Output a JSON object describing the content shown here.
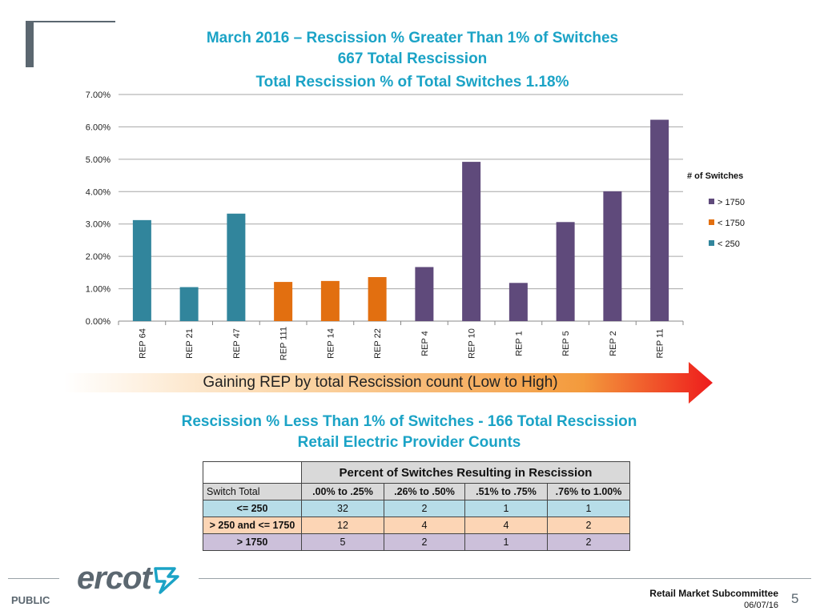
{
  "slide": {
    "title_lines": [
      "March 2016 – Rescission % Greater Than 1% of Switches",
      "667 Total Rescission",
      "Total Rescission % of Total Switches 1.18%"
    ],
    "arrow_text": "Gaining REP by total Rescission count (Low to High)",
    "subtitle_lines": [
      "Rescission % Less Than 1% of Switches - 166 Total Rescission",
      "Retail Electric Provider Counts"
    ],
    "footer": {
      "logo_text": "ercot",
      "public_label": "PUBLIC",
      "committee": "Retail Market Subcommittee",
      "date": "06/07/16",
      "page": "5"
    }
  },
  "chart_data": {
    "type": "bar",
    "categories": [
      "REP 64",
      "REP 21",
      "REP 47",
      "REP 111",
      "REP 14",
      "REP 22",
      "REP 4",
      "REP 10",
      "REP 1",
      "REP 5",
      "REP 2",
      "REP 11"
    ],
    "values": [
      3.12,
      1.05,
      3.32,
      1.21,
      1.24,
      1.36,
      1.67,
      4.92,
      1.18,
      3.06,
      4.01,
      6.22
    ],
    "groups": [
      "< 250",
      "< 250",
      "< 250",
      "< 1750",
      "< 1750",
      "< 1750",
      "> 1750",
      "> 1750",
      "> 1750",
      "> 1750",
      "> 1750",
      "> 1750"
    ],
    "ylim": [
      0,
      7
    ],
    "yticks": [
      "0.00%",
      "1.00%",
      "2.00%",
      "3.00%",
      "4.00%",
      "5.00%",
      "6.00%",
      "7.00%"
    ],
    "ytick_values": [
      0,
      1,
      2,
      3,
      4,
      5,
      6,
      7
    ],
    "grid": true,
    "legend": {
      "title": "# of Switches",
      "placement": "right",
      "entries": [
        {
          "name": "> 1750",
          "color": "#5f4a7b"
        },
        {
          "name": "< 1750",
          "color": "#e26f10"
        },
        {
          "name": "< 250",
          "color": "#31859c"
        }
      ]
    },
    "colors": {
      "< 250": "#31859c",
      "< 1750": "#e26f10",
      "> 1750": "#5f4a7b"
    }
  },
  "table": {
    "super_header": "Percent of Switches Resulting in Rescission",
    "columns": [
      "Switch Total",
      ".00% to .25%",
      ".26% to .50%",
      ".51% to .75%",
      ".76% to 1.00%"
    ],
    "rows": [
      {
        "label": "<= 250",
        "values": [
          "32",
          "2",
          "1",
          "1"
        ]
      },
      {
        "label": "> 250 and <= 1750",
        "values": [
          "12",
          "4",
          "4",
          "2"
        ]
      },
      {
        "label": "> 1750",
        "values": [
          "5",
          "2",
          "1",
          "2"
        ]
      }
    ]
  }
}
